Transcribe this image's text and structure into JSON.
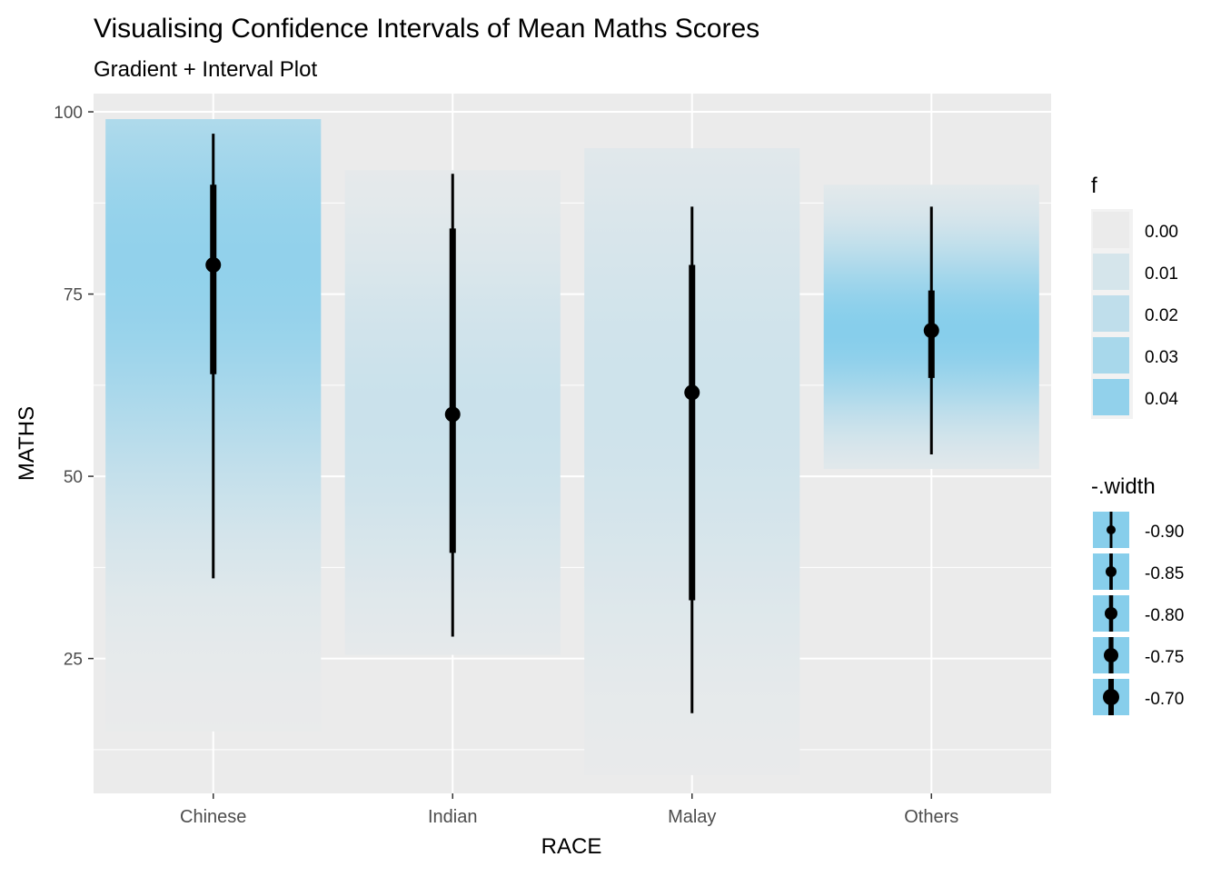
{
  "chart_data": {
    "type": "interval",
    "title": "Visualising Confidence Intervals of Mean Maths Scores",
    "subtitle": "Gradient + Interval Plot",
    "xlabel": "RACE",
    "ylabel": "MATHS",
    "categories": [
      "Chinese",
      "Indian",
      "Malay",
      "Others"
    ],
    "ylim": [
      6.5,
      102.5
    ],
    "yticks": [
      25,
      50,
      75,
      100
    ],
    "y_minor_gridlines": [
      12.5,
      37.5,
      62.5,
      87.5
    ],
    "grid": true,
    "background": "#EBEBEB",
    "gradient_color": "#87CEEB",
    "interval_color": "#000000",
    "series": [
      {
        "category": "Chinese",
        "point": 79,
        "inner": [
          64,
          90
        ],
        "outer": [
          36,
          97
        ],
        "band": [
          15,
          99
        ],
        "peak_f": 0.04
      },
      {
        "category": "Indian",
        "point": 58.5,
        "inner": [
          39.5,
          84
        ],
        "outer": [
          28,
          91.5
        ],
        "band": [
          25.5,
          92
        ],
        "peak_f": 0.015
      },
      {
        "category": "Malay",
        "point": 61.5,
        "inner": [
          33,
          79
        ],
        "outer": [
          17.5,
          87
        ],
        "band": [
          9,
          95
        ],
        "peak_f": 0.013
      },
      {
        "category": "Others",
        "point": 70,
        "inner": [
          63.5,
          75.5
        ],
        "outer": [
          53,
          87
        ],
        "band": [
          51,
          90
        ],
        "peak_f": 0.045
      }
    ],
    "legend": {
      "placement": "right",
      "fill": {
        "title": "f",
        "entries": [
          {
            "label": "0.00",
            "f": 0.0
          },
          {
            "label": "0.01",
            "f": 0.01
          },
          {
            "label": "0.02",
            "f": 0.02
          },
          {
            "label": "0.03",
            "f": 0.03
          },
          {
            "label": "0.04",
            "f": 0.04
          }
        ]
      },
      "width": {
        "title": "-.width",
        "entries": [
          {
            "label": "-0.90",
            "value": -0.9
          },
          {
            "label": "-0.85",
            "value": -0.85
          },
          {
            "label": "-0.80",
            "value": -0.8
          },
          {
            "label": "-0.75",
            "value": -0.75
          },
          {
            "label": "-0.70",
            "value": -0.7
          }
        ]
      }
    }
  }
}
